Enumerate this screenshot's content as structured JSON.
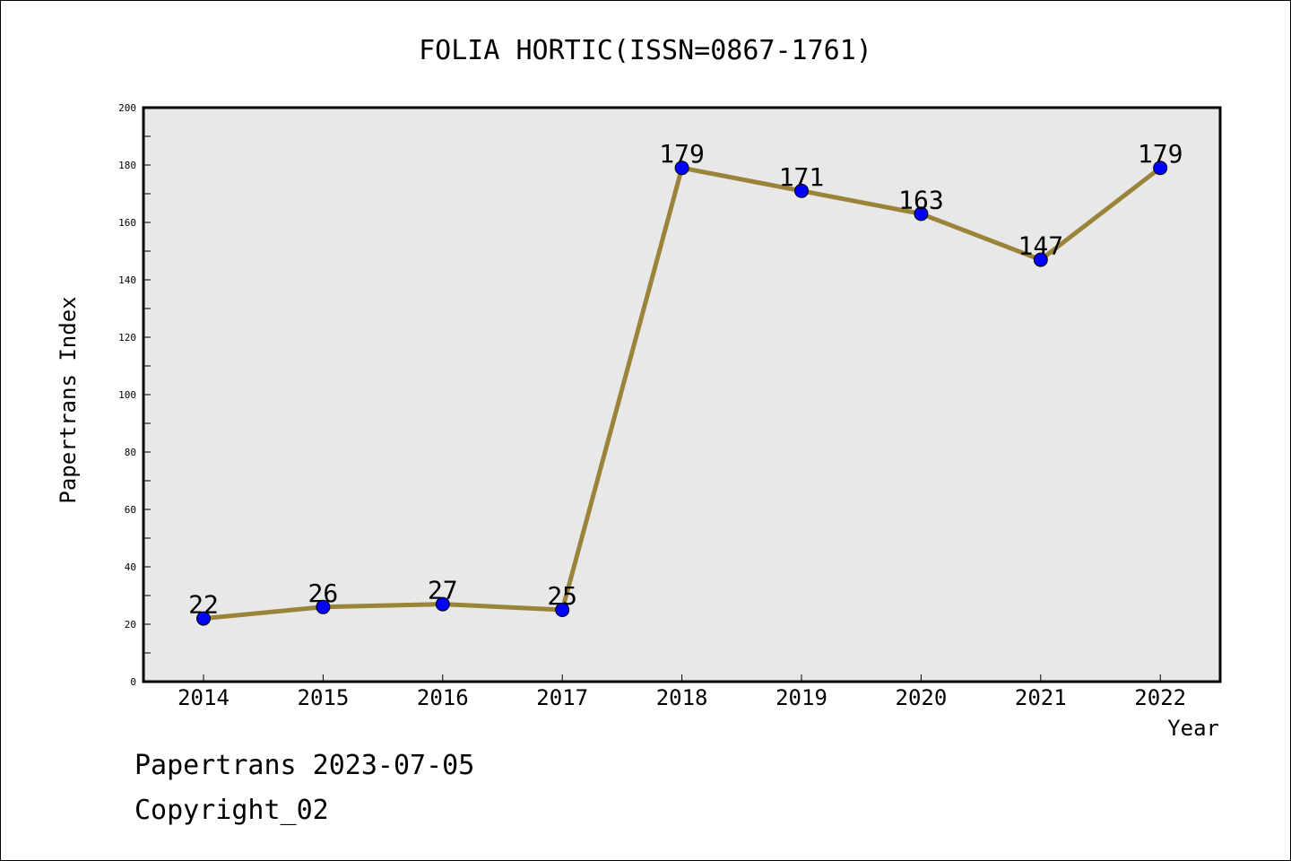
{
  "chart_data": {
    "type": "line",
    "title": "FOLIA HORTIC(ISSN=0867-1761)",
    "xlabel": "Year",
    "ylabel": "Papertrans Index",
    "categories": [
      "2014",
      "2015",
      "2016",
      "2017",
      "2018",
      "2019",
      "2020",
      "2021",
      "2022"
    ],
    "series": [
      {
        "values": [
          22,
          26,
          27,
          25,
          179,
          171,
          163,
          147,
          179
        ]
      }
    ],
    "data_labels": [
      "22",
      "26",
      "27",
      "25",
      "179",
      "171",
      "163",
      "147",
      "179"
    ],
    "ylim": [
      0,
      200
    ],
    "y_ticks": [
      "0",
      "20",
      "40",
      "60",
      "80",
      "100",
      "120",
      "140",
      "160",
      "180",
      "200"
    ],
    "grid": false,
    "colors": {
      "line": "#9a8439",
      "marker": "#0000ff",
      "plot_background": "#e8e8e8"
    }
  },
  "footer": {
    "date_text": "Papertrans 2023-07-05",
    "copyright_text": "Copyright_02"
  }
}
